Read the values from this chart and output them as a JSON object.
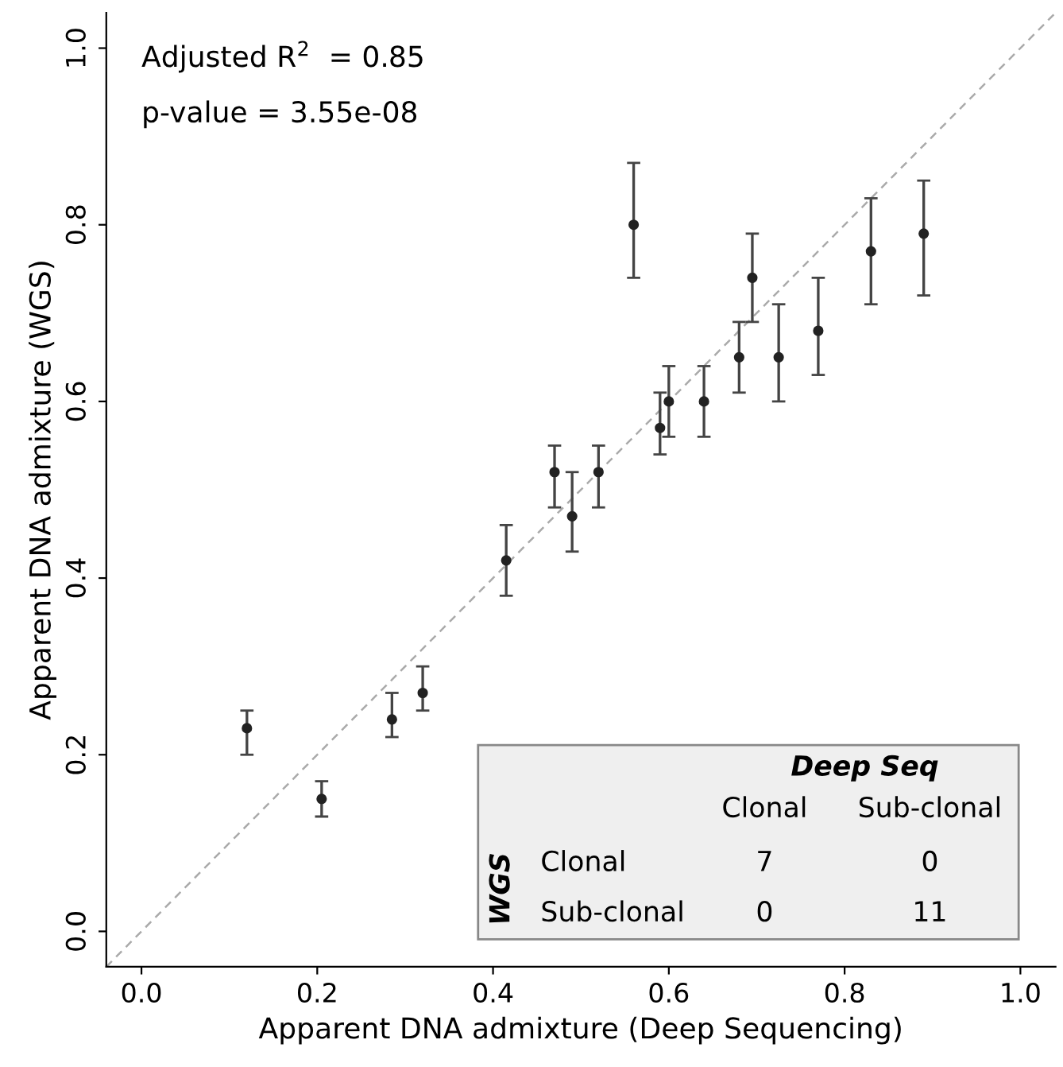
{
  "chart_data": {
    "type": "scatter",
    "xlabel": "Apparent DNA admixture (Deep Sequencing)",
    "ylabel": "Apparent DNA admixture (WGS)",
    "xlim": [
      -0.04,
      1.04
    ],
    "ylim": [
      -0.04,
      1.04
    ],
    "xticks": [
      {
        "value": 0,
        "label": "0.0"
      },
      0.2,
      0.4,
      0.6,
      0.8,
      {
        "value": 1,
        "label": "1.0"
      }
    ],
    "yticks": [
      {
        "value": 0,
        "label": "0.0"
      },
      0.2,
      0.4,
      0.6,
      0.8,
      {
        "value": 1,
        "label": "1.0"
      }
    ],
    "grid": false,
    "series": [
      {
        "color": "#222222",
        "marker": "circle",
        "x": [
          0.12,
          0.205,
          0.285,
          0.32,
          0.415,
          0.47,
          0.49,
          0.52,
          0.56,
          0.59,
          0.6,
          0.64,
          0.68,
          0.695,
          0.725,
          0.77,
          0.83,
          0.89
        ],
        "values": [
          0.23,
          0.15,
          0.24,
          0.27,
          0.42,
          0.52,
          0.47,
          0.52,
          0.8,
          0.57,
          0.6,
          0.6,
          0.65,
          0.74,
          0.65,
          0.68,
          0.77,
          0.79
        ],
        "errors": [
          [
            0.2,
            0.25
          ],
          [
            0.13,
            0.17
          ],
          [
            0.22,
            0.27
          ],
          [
            0.25,
            0.3
          ],
          [
            0.38,
            0.46
          ],
          [
            0.48,
            0.55
          ],
          [
            0.43,
            0.52
          ],
          [
            0.48,
            0.55
          ],
          [
            0.74,
            0.87
          ],
          [
            0.54,
            0.61
          ],
          [
            0.56,
            0.64
          ],
          [
            0.56,
            0.64
          ],
          [
            0.61,
            0.69
          ],
          [
            0.69,
            0.79
          ],
          [
            0.6,
            0.71
          ],
          [
            0.63,
            0.74
          ],
          [
            0.71,
            0.83
          ],
          [
            0.72,
            0.85
          ]
        ]
      },
      {
        "type": "line",
        "color": "#aaaaaa",
        "line_style": "dashed",
        "marker": "none",
        "x": [
          -0.04,
          1.04
        ],
        "values": [
          -0.04,
          1.04
        ]
      }
    ],
    "annotations": [
      "Adjusted R$^{2}$  = 0.85",
      "p-value = 3.55e-08",
      "Deep Seq",
      "Clonal",
      "Sub-clonal",
      "WGS",
      "Clonal",
      "Sub-clonal",
      "7",
      "0",
      "0",
      "11"
    ]
  }
}
